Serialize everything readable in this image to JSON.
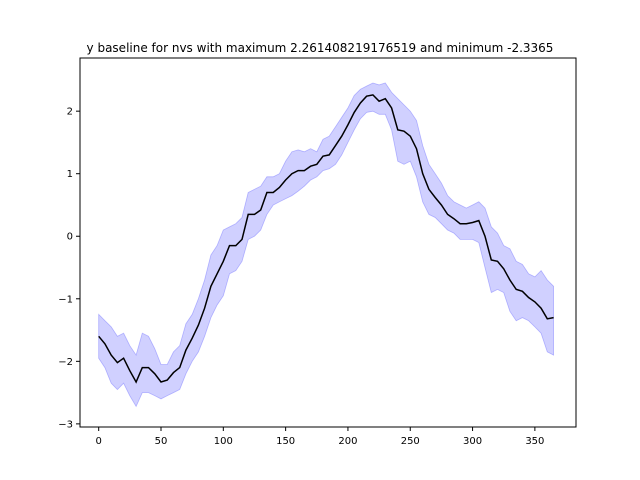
{
  "chart_data": {
    "type": "line",
    "title": "y baseline for nvs with maximum 2.261408219176519 and minimum -2.3365",
    "xlabel": "",
    "ylabel": "",
    "xlim": [
      -15,
      383
    ],
    "ylim": [
      -3.05,
      2.85
    ],
    "x_ticks": [
      0,
      50,
      100,
      150,
      200,
      250,
      300,
      350
    ],
    "y_ticks": [
      -3,
      -2,
      -1,
      0,
      1,
      2
    ],
    "grid": false,
    "line_color": "#000000",
    "band_color": "#7777ff",
    "series": [
      {
        "x": [
          0,
          5,
          10,
          15,
          20,
          25,
          30,
          35,
          40,
          45,
          50,
          55,
          60,
          65,
          70,
          75,
          80,
          85,
          90,
          95,
          100,
          105,
          110,
          115,
          120,
          125,
          130,
          135,
          140,
          145,
          150,
          155,
          160,
          165,
          170,
          175,
          180,
          185,
          190,
          195,
          200,
          205,
          210,
          215,
          220,
          225,
          230,
          235,
          240,
          245,
          250,
          255,
          260,
          265,
          270,
          275,
          280,
          285,
          290,
          295,
          300,
          305,
          310,
          315,
          320,
          325,
          330,
          335,
          340,
          345,
          350,
          355,
          360,
          365
        ],
        "y": [
          -1.6,
          -1.72,
          -1.9,
          -2.02,
          -1.95,
          -2.15,
          -2.33,
          -2.1,
          -2.1,
          -2.2,
          -2.33,
          -2.3,
          -2.18,
          -2.1,
          -1.82,
          -1.63,
          -1.42,
          -1.15,
          -0.8,
          -0.6,
          -0.4,
          -0.15,
          -0.15,
          -0.05,
          0.35,
          0.35,
          0.42,
          0.7,
          0.7,
          0.78,
          0.9,
          1.0,
          1.05,
          1.05,
          1.12,
          1.15,
          1.28,
          1.3,
          1.45,
          1.6,
          1.78,
          1.98,
          2.13,
          2.24,
          2.26,
          2.16,
          2.2,
          2.05,
          1.7,
          1.68,
          1.6,
          1.4,
          1.0,
          0.75,
          0.62,
          0.5,
          0.35,
          0.28,
          0.2,
          0.2,
          0.22,
          0.25,
          0.0,
          -0.38,
          -0.4,
          -0.52,
          -0.7,
          -0.85,
          -0.88,
          -0.98,
          -1.05,
          -1.15,
          -1.32,
          -1.3
        ],
        "lower": [
          -1.95,
          -2.1,
          -2.35,
          -2.45,
          -2.35,
          -2.55,
          -2.72,
          -2.5,
          -2.5,
          -2.55,
          -2.6,
          -2.55,
          -2.5,
          -2.45,
          -2.2,
          -2.0,
          -1.85,
          -1.6,
          -1.3,
          -1.1,
          -0.95,
          -0.6,
          -0.55,
          -0.4,
          -0.05,
          0.0,
          0.1,
          0.35,
          0.5,
          0.55,
          0.6,
          0.65,
          0.72,
          0.8,
          0.9,
          0.95,
          1.05,
          1.08,
          1.15,
          1.3,
          1.5,
          1.7,
          1.88,
          1.98,
          2.0,
          1.95,
          1.95,
          1.7,
          1.2,
          1.15,
          1.2,
          0.95,
          0.55,
          0.35,
          0.3,
          0.2,
          0.1,
          0.05,
          -0.05,
          -0.05,
          -0.05,
          -0.1,
          -0.5,
          -0.9,
          -0.85,
          -0.9,
          -1.2,
          -1.35,
          -1.3,
          -1.35,
          -1.45,
          -1.55,
          -1.85,
          -1.9
        ],
        "upper": [
          -1.25,
          -1.35,
          -1.45,
          -1.6,
          -1.55,
          -1.75,
          -1.9,
          -1.55,
          -1.6,
          -1.8,
          -2.05,
          -2.05,
          -1.85,
          -1.75,
          -1.4,
          -1.25,
          -1.0,
          -0.7,
          -0.3,
          -0.15,
          0.1,
          0.15,
          0.2,
          0.3,
          0.7,
          0.75,
          0.8,
          0.95,
          0.95,
          1.0,
          1.2,
          1.35,
          1.38,
          1.35,
          1.4,
          1.35,
          1.55,
          1.6,
          1.75,
          1.9,
          2.05,
          2.25,
          2.35,
          2.4,
          2.45,
          2.42,
          2.45,
          2.3,
          2.2,
          2.1,
          2.0,
          1.85,
          1.45,
          1.15,
          1.0,
          0.85,
          0.65,
          0.55,
          0.5,
          0.45,
          0.5,
          0.55,
          0.45,
          0.15,
          0.05,
          -0.15,
          -0.2,
          -0.4,
          -0.45,
          -0.6,
          -0.65,
          -0.55,
          -0.7,
          -0.8
        ]
      }
    ]
  }
}
